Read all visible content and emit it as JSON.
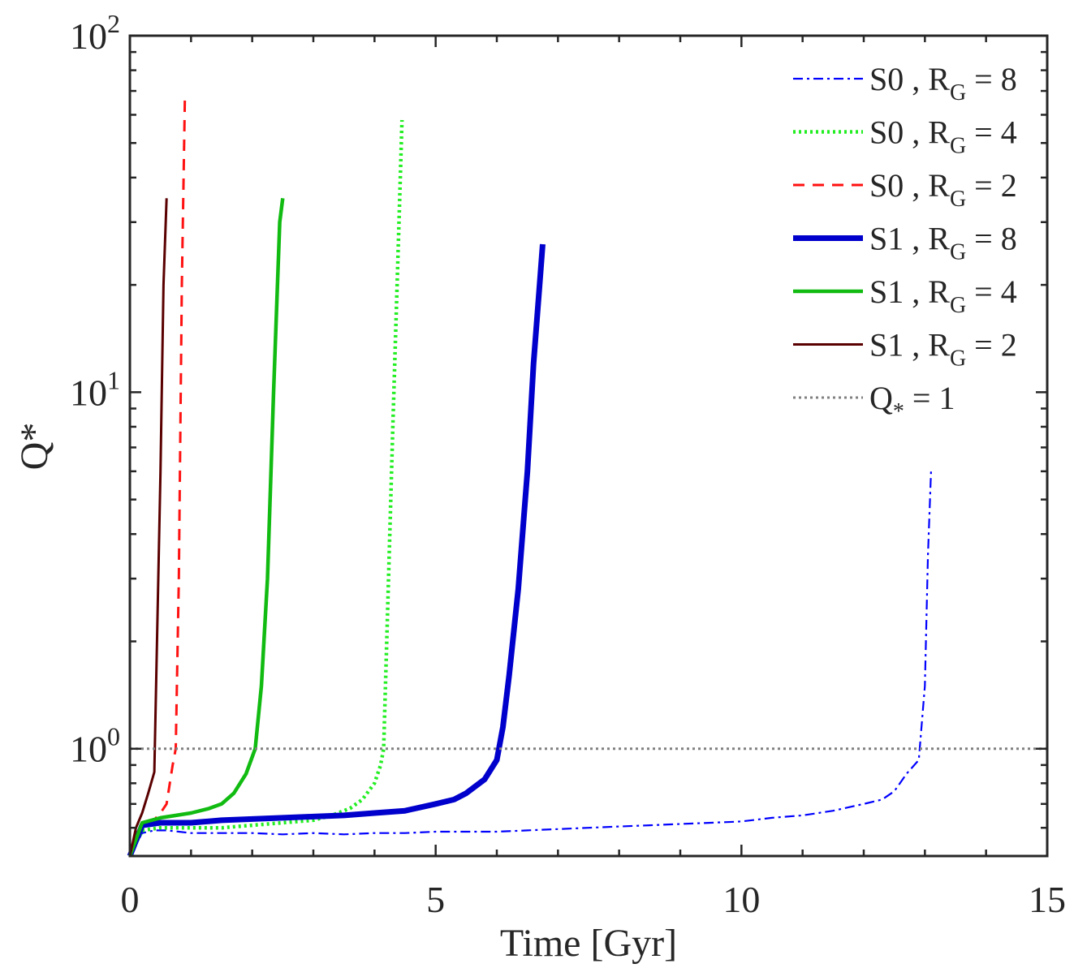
{
  "chart_data": {
    "type": "line",
    "xlabel": "Time [Gyr]",
    "ylabel": "Q*",
    "xlim": [
      0,
      15
    ],
    "ylim": [
      0.5,
      100
    ],
    "yscale": "log",
    "xticks": [
      0,
      5,
      10,
      15
    ],
    "xtick_labels": [
      "0",
      "5",
      "10",
      "15"
    ],
    "yticks": [
      1,
      10,
      100
    ],
    "ytick_labels": [
      {
        "base": "10",
        "exp": "0"
      },
      {
        "base": "10",
        "exp": "1"
      },
      {
        "base": "10",
        "exp": "2"
      }
    ],
    "grid": false,
    "legend_position": "top-right",
    "series": [
      {
        "key": "s0-rg8",
        "name": "S0 , RG = 8",
        "legend": {
          "prefix": "S0 , R",
          "sub": "G",
          "suffix": " = 8"
        },
        "color": "#0000ff",
        "style": "dashdot",
        "width": 2.2,
        "x": [
          0,
          0.2,
          0.4,
          0.6,
          0.8,
          1.0,
          1.5,
          2.0,
          2.5,
          3.0,
          3.5,
          4.0,
          4.5,
          5.0,
          5.5,
          6.0,
          6.5,
          7.0,
          7.5,
          8.0,
          8.5,
          9.0,
          9.5,
          10.0,
          10.5,
          11.0,
          11.5,
          12.0,
          12.3,
          12.5,
          12.7,
          12.9,
          13.0,
          13.05,
          13.1
        ],
        "y": [
          0.5,
          0.58,
          0.59,
          0.59,
          0.585,
          0.58,
          0.58,
          0.58,
          0.575,
          0.58,
          0.575,
          0.58,
          0.58,
          0.585,
          0.585,
          0.585,
          0.59,
          0.595,
          0.6,
          0.605,
          0.61,
          0.615,
          0.62,
          0.625,
          0.64,
          0.65,
          0.67,
          0.7,
          0.72,
          0.76,
          0.85,
          0.93,
          1.5,
          3.5,
          6.0
        ]
      },
      {
        "key": "s0-rg4",
        "name": "S0 , RG = 4",
        "legend": {
          "prefix": "S0 , R",
          "sub": "G",
          "suffix": " = 4"
        },
        "color": "#22ee22",
        "style": "dotted",
        "width": 4.5,
        "x": [
          0,
          0.2,
          0.5,
          1.0,
          1.5,
          2.0,
          2.5,
          3.0,
          3.3,
          3.6,
          3.8,
          4.0,
          4.1,
          4.15,
          4.2,
          4.3,
          4.4,
          4.45
        ],
        "y": [
          0.5,
          0.59,
          0.6,
          0.6,
          0.6,
          0.61,
          0.62,
          0.63,
          0.65,
          0.68,
          0.72,
          0.8,
          0.9,
          1.0,
          2.0,
          8.0,
          30.0,
          58.0
        ]
      },
      {
        "key": "s0-rg2",
        "name": "S0 , RG = 2",
        "legend": {
          "prefix": "S0 , R",
          "sub": "G",
          "suffix": " = 2"
        },
        "color": "#ff1111",
        "style": "dashed",
        "width": 3,
        "x": [
          0,
          0.1,
          0.2,
          0.35,
          0.5,
          0.6,
          0.7,
          0.75,
          0.8,
          0.85,
          0.9
        ],
        "y": [
          0.5,
          0.58,
          0.6,
          0.62,
          0.66,
          0.7,
          0.9,
          1.0,
          3.0,
          20.0,
          68.0
        ]
      },
      {
        "key": "s1-rg8",
        "name": "S1 , RG = 8",
        "legend": {
          "prefix": "S1 , R",
          "sub": "G",
          "suffix": " = 8"
        },
        "color": "#0000cc",
        "style": "solid",
        "width": 7,
        "x": [
          0,
          0.2,
          0.5,
          1.0,
          1.5,
          2.0,
          2.5,
          3.0,
          3.5,
          4.0,
          4.5,
          5.0,
          5.3,
          5.5,
          5.8,
          6.0,
          6.1,
          6.2,
          6.35,
          6.5,
          6.6,
          6.7,
          6.75
        ],
        "y": [
          0.5,
          0.61,
          0.62,
          0.62,
          0.63,
          0.635,
          0.64,
          0.645,
          0.65,
          0.66,
          0.67,
          0.7,
          0.72,
          0.75,
          0.82,
          0.93,
          1.15,
          1.6,
          2.8,
          6.0,
          12.0,
          20.0,
          26.0
        ]
      },
      {
        "key": "s1-rg4",
        "name": "S1 , RG = 4",
        "legend": {
          "prefix": "S1 , R",
          "sub": "G",
          "suffix": " = 4"
        },
        "color": "#11bb11",
        "style": "solid",
        "width": 4.5,
        "x": [
          0,
          0.2,
          0.5,
          1.0,
          1.3,
          1.5,
          1.7,
          1.9,
          2.05,
          2.15,
          2.25,
          2.35,
          2.45,
          2.5
        ],
        "y": [
          0.5,
          0.62,
          0.64,
          0.66,
          0.68,
          0.7,
          0.75,
          0.85,
          1.0,
          1.5,
          3.0,
          10.0,
          30.0,
          35.0
        ]
      },
      {
        "key": "s1-rg2",
        "name": "S1 , RG = 2",
        "legend": {
          "prefix": "S1 , R",
          "sub": "G",
          "suffix": " = 2"
        },
        "color": "#5a0000",
        "style": "solid",
        "width": 3,
        "x": [
          0,
          0.1,
          0.2,
          0.3,
          0.4,
          0.5,
          0.55,
          0.6
        ],
        "y": [
          0.5,
          0.6,
          0.66,
          0.75,
          0.86,
          6.0,
          20.0,
          35.0
        ]
      },
      {
        "key": "q1",
        "name": "Q* = 1",
        "legend": {
          "prefix": "Q",
          "sub": "*",
          "suffix": " = 1"
        },
        "color": "#808080",
        "style": "dotted",
        "width": 3,
        "x": [
          0,
          15
        ],
        "y": [
          1,
          1
        ]
      }
    ]
  }
}
